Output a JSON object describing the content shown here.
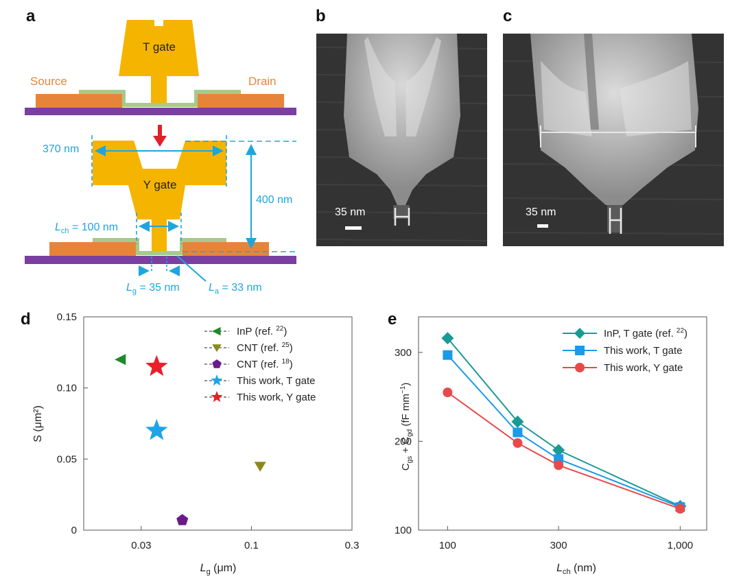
{
  "panel_labels": {
    "a": "a",
    "b": "b",
    "c": "c",
    "d": "d",
    "e": "e"
  },
  "schematic": {
    "t_gate": "T gate",
    "y_gate": "Y gate",
    "source": "Source",
    "drain": "Drain",
    "width_label": "370 nm",
    "height_label": "400 nm",
    "lch_sym": "L",
    "lch_sub": "ch",
    "lch_val": " = 100 nm",
    "lg_sym": "L",
    "lg_sub": "g",
    "lg_val": " = 35 nm",
    "la_sym": "L",
    "la_sub": "a",
    "la_val": " = 33 nm",
    "colors": {
      "gate": "#f5b400",
      "source_drain": "#e8843a",
      "substrate": "#7b3fa0",
      "channel": "#a8c98a",
      "dim": "#1ea5dc",
      "arrow": "#e0202a"
    }
  },
  "sem_b": {
    "scale_label": "35 nm"
  },
  "sem_c": {
    "scale_label": "35 nm"
  },
  "chart_data": [
    {
      "type": "scatter",
      "panel": "d",
      "xscale": "log",
      "xlim": [
        0.016,
        0.3
      ],
      "ylim": [
        0,
        0.15
      ],
      "xticks": [
        {
          "v": 0.03,
          "label": "0.03"
        },
        {
          "v": 0.1,
          "label": "0.1"
        },
        {
          "v": 0.3,
          "label": "0.3"
        }
      ],
      "yticks": [
        {
          "v": 0,
          "label": "0"
        },
        {
          "v": 0.05,
          "label": "0.05"
        },
        {
          "v": 0.1,
          "label": "0.10"
        },
        {
          "v": 0.15,
          "label": "0.15"
        }
      ],
      "xlabel_sym": "L",
      "xlabel_sub": "g",
      "xlabel_rest": " (μm)",
      "ylabel": "S (μm²)",
      "legend_position": "top-right",
      "series": [
        {
          "name": "InP (ref. ",
          "ref": "22",
          "marker": "triangle-left",
          "color": "#1f8a2a",
          "x": 0.024,
          "y": 0.12
        },
        {
          "name": "CNT (ref. ",
          "ref": "25",
          "marker": "triangle-down",
          "color": "#8a8a1a",
          "x": 0.11,
          "y": 0.045
        },
        {
          "name": "CNT (ref. ",
          "ref": "18",
          "marker": "pentagon",
          "color": "#6a1a8a",
          "x": 0.047,
          "y": 0.007
        },
        {
          "name": "This work, T gate",
          "marker": "star",
          "color": "#1ea5e8",
          "x": 0.0355,
          "y": 0.07
        },
        {
          "name": "This work, Y gate",
          "marker": "star",
          "color": "#e8202a",
          "x": 0.0355,
          "y": 0.115
        }
      ]
    },
    {
      "type": "line",
      "panel": "e",
      "xscale": "log",
      "xlim": [
        75,
        1300
      ],
      "ylim": [
        100,
        340
      ],
      "xticks": [
        {
          "v": 100,
          "label": "100"
        },
        {
          "v": 300,
          "label": "300"
        },
        {
          "v": 1000,
          "label": "1,000"
        }
      ],
      "yticks": [
        {
          "v": 100,
          "label": "100"
        },
        {
          "v": 200,
          "label": "200"
        },
        {
          "v": 300,
          "label": "300"
        }
      ],
      "x": [
        100,
        200,
        300,
        1000
      ],
      "xlabel_sym": "L",
      "xlabel_sub": "ch",
      "xlabel_rest": " (nm)",
      "ylabel_parts": [
        "C",
        "gs",
        " + C",
        "gd",
        " (fF mm",
        "−1",
        ")"
      ],
      "legend_position": "top-right",
      "series": [
        {
          "name": "InP, T gate (ref. ",
          "ref": "22",
          "marker": "diamond",
          "color": "#1a9a95",
          "values": [
            316,
            222,
            190,
            127
          ]
        },
        {
          "name": "This work, T gate",
          "marker": "square",
          "color": "#1a9ae8",
          "values": [
            297,
            210,
            180,
            126
          ]
        },
        {
          "name": "This work, Y gate",
          "marker": "circle",
          "color": "#e84a4a",
          "values": [
            255,
            198,
            173,
            124
          ]
        }
      ]
    }
  ]
}
